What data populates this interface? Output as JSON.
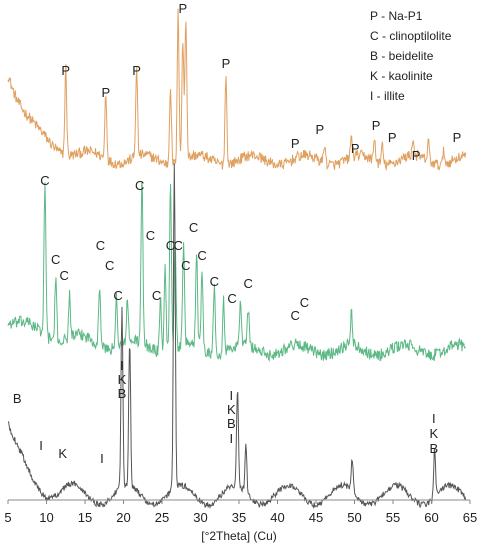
{
  "chart_data": {
    "type": "line",
    "xlabel": "[°2Theta] (Cu)",
    "ylabel": "",
    "xlim": [
      5,
      65
    ],
    "xticks": [
      "5",
      "10",
      "15",
      "20",
      "25",
      "30",
      "35",
      "40",
      "45",
      "50",
      "55",
      "60",
      "65"
    ],
    "grid": false,
    "legend_position": "top-right",
    "legend": [
      "P - Na-P1",
      "C - clinoptilolite",
      "B - beidelite",
      "K - kaolinite",
      "I - illite"
    ],
    "series": [
      {
        "color": "#e0a060",
        "baseline_decay": 0.3,
        "peaks": [
          [
            12.5,
            0.55
          ],
          [
            17.7,
            0.42
          ],
          [
            21.7,
            0.55
          ],
          [
            26.1,
            0.5
          ],
          [
            27.1,
            0.95
          ],
          [
            27.7,
            0.75
          ],
          [
            28.1,
            0.9
          ],
          [
            33.3,
            0.55
          ],
          [
            46.1,
            0.12
          ],
          [
            49.6,
            0.13
          ],
          [
            52.6,
            0.14
          ],
          [
            53.6,
            0.12
          ],
          [
            57.6,
            0.1
          ],
          [
            59.6,
            0.12
          ],
          [
            61.6,
            0.08
          ]
        ],
        "labels": [
          {
            "text": "P",
            "x": 12.5
          },
          {
            "text": "P",
            "x": 17.7
          },
          {
            "text": "P",
            "x": 21.7
          },
          {
            "text": "P",
            "x": 27.7
          },
          {
            "text": "P",
            "x": 33.3
          },
          {
            "text": "P",
            "x": 42.3
          },
          {
            "text": "P",
            "x": 45.5
          },
          {
            "text": "P",
            "x": 50.1
          },
          {
            "text": "P",
            "x": 52.8
          },
          {
            "text": "P",
            "x": 54.9
          },
          {
            "text": "P",
            "x": 58.0
          },
          {
            "text": "P",
            "x": 63.3
          }
        ]
      },
      {
        "color": "#5cb885",
        "baseline_decay": 0.12,
        "peaks": [
          [
            9.8,
            0.9
          ],
          [
            11.2,
            0.35
          ],
          [
            13.0,
            0.25
          ],
          [
            16.9,
            0.35
          ],
          [
            19.1,
            0.3
          ],
          [
            20.5,
            0.25
          ],
          [
            22.4,
            0.95
          ],
          [
            24.8,
            0.3
          ],
          [
            25.4,
            0.5
          ],
          [
            26.1,
            1.0
          ],
          [
            26.7,
            0.6
          ],
          [
            27.8,
            0.55
          ],
          [
            29.5,
            0.55
          ],
          [
            30.2,
            0.45
          ],
          [
            31.8,
            0.4
          ],
          [
            33.0,
            0.3
          ],
          [
            35.2,
            0.25
          ],
          [
            36.2,
            0.2
          ],
          [
            49.6,
            0.2
          ]
        ],
        "labels": [
          {
            "text": "C",
            "x": 9.8
          },
          {
            "text": "C",
            "x": 11.2
          },
          {
            "text": "C",
            "x": 12.3
          },
          {
            "text": "C",
            "x": 17.0
          },
          {
            "text": "C",
            "x": 18.2
          },
          {
            "text": "C",
            "x": 19.3
          },
          {
            "text": "C",
            "x": 22.1
          },
          {
            "text": "C",
            "x": 23.5
          },
          {
            "text": "C",
            "x": 24.3
          },
          {
            "text": "C",
            "x": 26.1
          },
          {
            "text": "C",
            "x": 27.1
          },
          {
            "text": "C",
            "x": 28.1
          },
          {
            "text": "C",
            "x": 29.1
          },
          {
            "text": "C",
            "x": 30.2
          },
          {
            "text": "C",
            "x": 31.8
          },
          {
            "text": "C",
            "x": 34.1
          },
          {
            "text": "C",
            "x": 36.2
          },
          {
            "text": "C",
            "x": 42.3
          },
          {
            "text": "C",
            "x": 43.5
          }
        ]
      },
      {
        "color": "#555555",
        "baseline_decay": 0.45,
        "peaks": [
          [
            19.8,
            0.55
          ],
          [
            20.8,
            0.45
          ],
          [
            26.6,
            1.0
          ],
          [
            34.8,
            0.3
          ],
          [
            35.9,
            0.15
          ],
          [
            49.7,
            0.1
          ],
          [
            60.4,
            0.15
          ]
        ],
        "labels": [
          {
            "text": "B",
            "x": 6.2
          },
          {
            "text": "I",
            "x": 9.3
          },
          {
            "text": "K",
            "x": 12.1
          },
          {
            "text": "I",
            "x": 17.2
          },
          {
            "text": "I",
            "x": 19.8
          },
          {
            "text": "K",
            "x": 19.8
          },
          {
            "text": "B",
            "x": 19.8
          },
          {
            "text": "I",
            "x": 34.0
          },
          {
            "text": "K",
            "x": 34.0
          },
          {
            "text": "B",
            "x": 34.0
          },
          {
            "text": "I",
            "x": 34.0
          },
          {
            "text": "I",
            "x": 60.3
          },
          {
            "text": "K",
            "x": 60.3
          },
          {
            "text": "B",
            "x": 60.3
          }
        ]
      }
    ]
  }
}
